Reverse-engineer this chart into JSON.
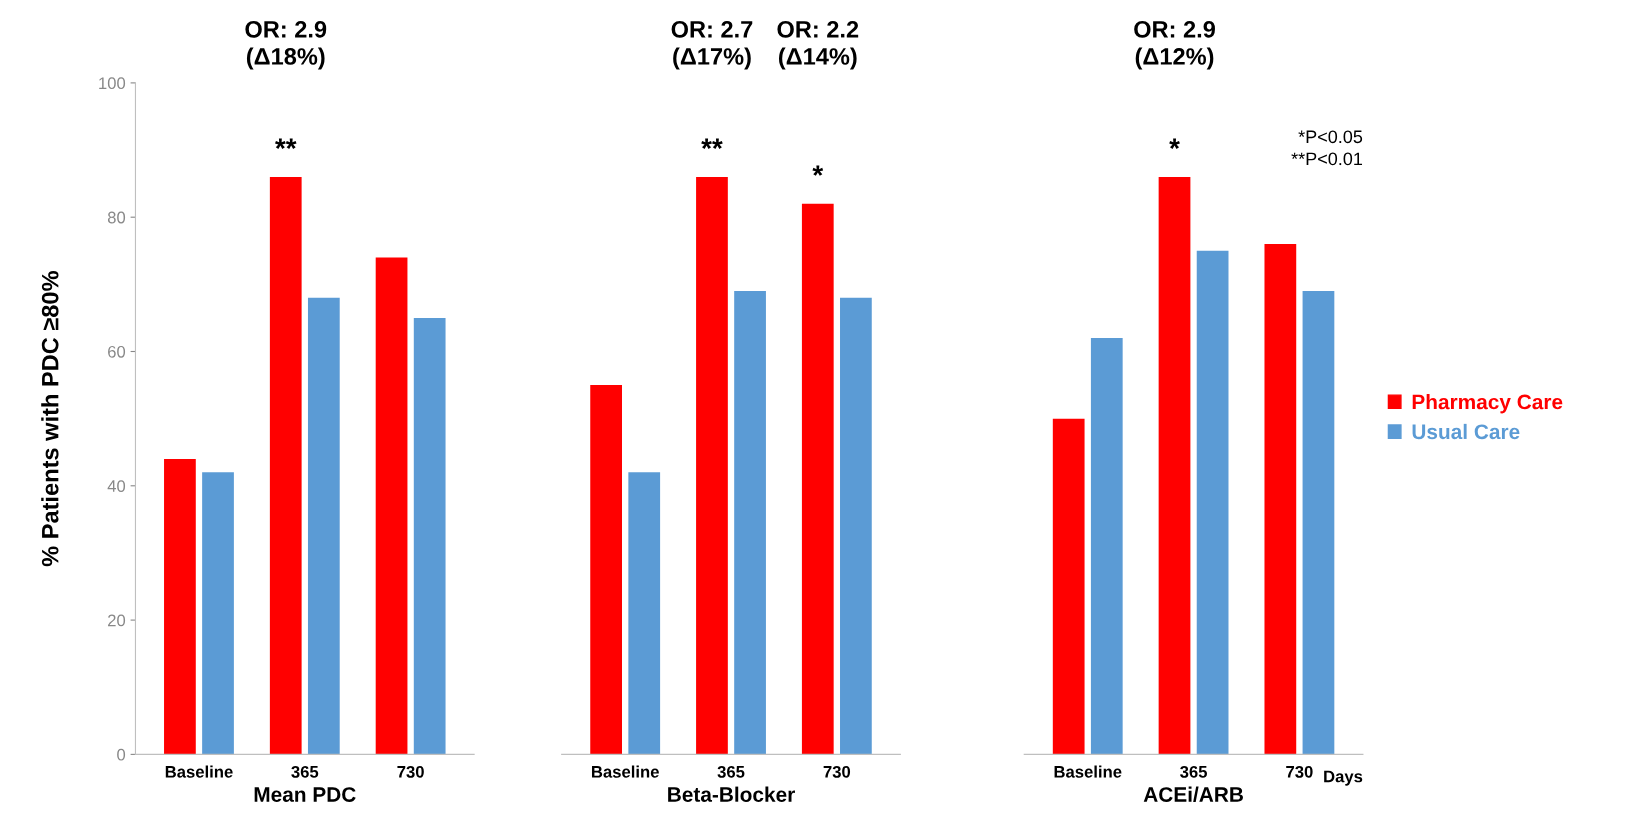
{
  "chart_data": [
    {
      "type": "bar",
      "categories": [
        "Baseline",
        "365",
        "730"
      ],
      "xlabel": "Mean PDC",
      "ylabel": "% Patients with PDC ≥80%",
      "ylim": [
        0,
        100
      ],
      "yticks": [
        0,
        20,
        40,
        60,
        80,
        100
      ],
      "grid": false,
      "series": [
        {
          "color": "#ff0000",
          "values": [
            44,
            86,
            74
          ]
        },
        {
          "color": "#5b9bd5",
          "values": [
            42,
            68,
            65
          ]
        }
      ],
      "annotations": [
        "OR: 2.9\n(Δ18%)",
        {
          "text": "**",
          "x": "365",
          "y": 86
        }
      ]
    },
    {
      "type": "bar",
      "categories": [
        "Baseline",
        "365",
        "730"
      ],
      "xlabel": "Beta-Blocker",
      "ylim": [
        0,
        100
      ],
      "tick_labels": "x",
      "grid": false,
      "series": [
        {
          "color": "#ff0000",
          "values": [
            55,
            86,
            82
          ]
        },
        {
          "color": "#5b9bd5",
          "values": [
            42,
            69,
            68
          ]
        }
      ],
      "annotations": [
        "OR: 2.7\n(Δ17%)",
        "OR: 2.2\n(Δ14%)",
        {
          "text": "**",
          "x": "365",
          "y": 86
        },
        {
          "text": "*",
          "x": "730",
          "y": 82
        }
      ]
    },
    {
      "type": "bar",
      "categories": [
        "Baseline",
        "365",
        "730"
      ],
      "xlabel": "ACEi/ARB",
      "ylim": [
        0,
        100
      ],
      "tick_labels": "x",
      "grid": false,
      "legend": "right",
      "series": [
        {
          "name": "Pharmacy Care",
          "color": "#ff0000",
          "values": [
            50,
            86,
            76
          ]
        },
        {
          "name": "Usual Care",
          "color": "#5b9bd5",
          "values": [
            62,
            75,
            69
          ]
        }
      ],
      "annotations": [
        "OR: 2.9\n(Δ12%)",
        {
          "text": "*",
          "x": "365",
          "y": 86
        },
        "*P<0.05\n**P<0.01",
        "Days"
      ]
    }
  ]
}
